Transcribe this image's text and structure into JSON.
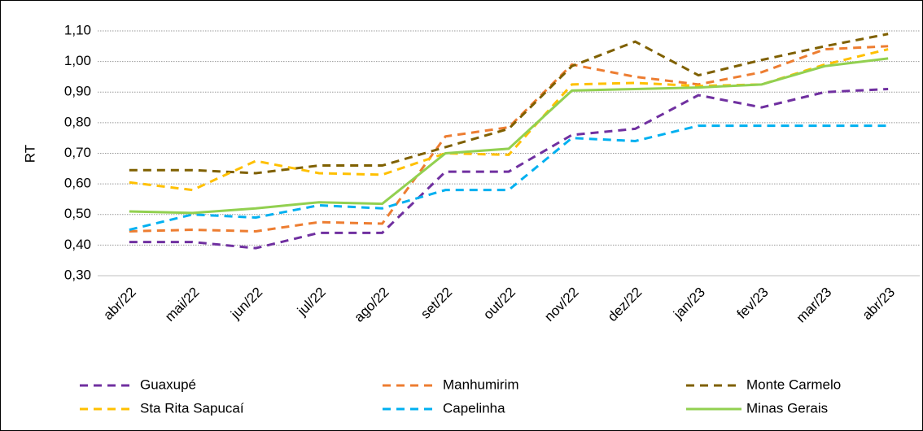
{
  "chart_data": {
    "type": "line",
    "y_label": "RT",
    "categories": [
      "abr/22",
      "mai/22",
      "jun/22",
      "jul/22",
      "ago/22",
      "set/22",
      "out/22",
      "nov/22",
      "dez/22",
      "jan/23",
      "fev/23",
      "mar/23",
      "abr/23"
    ],
    "ylim": [
      0.3,
      1.1
    ],
    "yticks": [
      {
        "value": 0.3,
        "label": "0,30"
      },
      {
        "value": 0.4,
        "label": "0,40"
      },
      {
        "value": 0.5,
        "label": "0,50"
      },
      {
        "value": 0.6,
        "label": "0,60"
      },
      {
        "value": 0.7,
        "label": "0,70"
      },
      {
        "value": 0.8,
        "label": "0,80"
      },
      {
        "value": 0.9,
        "label": "0,90"
      },
      {
        "value": 1.0,
        "label": "1,00"
      },
      {
        "value": 1.1,
        "label": "1,10"
      }
    ],
    "grid": true,
    "legend": "bottom",
    "series": [
      {
        "name": "Guaxupé",
        "color": "#7030a0",
        "dashed": true,
        "values": [
          0.41,
          0.41,
          0.39,
          0.44,
          0.44,
          0.64,
          0.64,
          0.76,
          0.78,
          0.89,
          0.85,
          0.9,
          0.91
        ]
      },
      {
        "name": "Manhumirim",
        "color": "#ed7d31",
        "dashed": true,
        "values": [
          0.445,
          0.45,
          0.445,
          0.475,
          0.47,
          0.755,
          0.785,
          0.99,
          0.95,
          0.925,
          0.965,
          1.04,
          1.05
        ]
      },
      {
        "name": "Monte Carmelo",
        "color": "#7f6000",
        "dashed": true,
        "values": [
          0.645,
          0.645,
          0.635,
          0.66,
          0.66,
          0.72,
          0.78,
          0.985,
          1.065,
          0.955,
          1.005,
          1.05,
          1.09
        ]
      },
      {
        "name": "Sta Rita Sapucaí",
        "color": "#ffc000",
        "dashed": true,
        "values": [
          0.605,
          0.58,
          0.675,
          0.635,
          0.63,
          0.7,
          0.695,
          0.925,
          0.93,
          0.92,
          0.925,
          0.99,
          1.04
        ]
      },
      {
        "name": "Capelinha",
        "color": "#00b0f0",
        "dashed": true,
        "values": [
          0.45,
          0.5,
          0.49,
          0.53,
          0.52,
          0.58,
          0.58,
          0.75,
          0.74,
          0.79,
          0.79,
          0.79,
          0.79
        ]
      },
      {
        "name": "Minas Gerais",
        "color": "#92d050",
        "dashed": false,
        "values": [
          0.51,
          0.505,
          0.52,
          0.54,
          0.535,
          0.7,
          0.715,
          0.905,
          0.91,
          0.915,
          0.925,
          0.985,
          1.01
        ]
      }
    ]
  }
}
